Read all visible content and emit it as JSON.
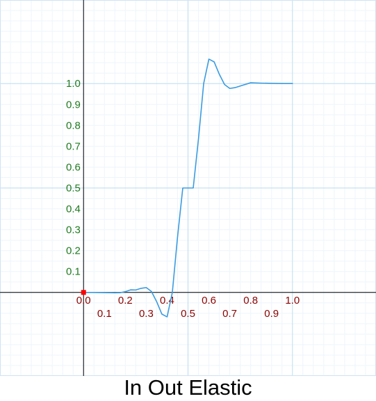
{
  "chart_data": {
    "type": "line",
    "title": "In Out Elastic",
    "xlabel": "",
    "ylabel": "",
    "xlim": [
      -0.4,
      1.4
    ],
    "ylim": [
      -0.4,
      1.4
    ],
    "grid": true,
    "x_ticks": [
      "0.0",
      "0.1",
      "0.2",
      "0.3",
      "0.4",
      "0.5",
      "0.6",
      "0.7",
      "0.8",
      "0.9",
      "1.0"
    ],
    "y_ticks": [
      "0.1",
      "0.2",
      "0.3",
      "0.4",
      "0.5",
      "0.6",
      "0.7",
      "0.8",
      "0.9",
      "1.0"
    ],
    "origin_marker": [
      0,
      0
    ],
    "colors": {
      "curve": "#3a9be0",
      "x_tick": "#8b0000",
      "y_tick": "#1e7a1e",
      "axis": "#000000",
      "grid_major": "#bcdcf2",
      "grid_minor": "#eef5fb",
      "marker": "#ff0000"
    },
    "series": [
      {
        "x": [
          0.0,
          0.05,
          0.1,
          0.15,
          0.175,
          0.2,
          0.225,
          0.25,
          0.275,
          0.3,
          0.325,
          0.35,
          0.375,
          0.4,
          0.425,
          0.45,
          0.475,
          0.5,
          0.525,
          0.55,
          0.575,
          0.6,
          0.625,
          0.65,
          0.675,
          0.7,
          0.725,
          0.75,
          0.8,
          0.85,
          0.9,
          0.95,
          1.0
        ],
        "y": [
          0.0,
          0.0,
          -0.001,
          -0.002,
          -0.0014,
          0.0039,
          0.0123,
          0.0117,
          0.0195,
          0.0234,
          0.0047,
          -0.0443,
          -0.1039,
          -0.117,
          0.0,
          0.2663,
          0.5,
          0.5,
          0.5,
          0.7337,
          1.0,
          1.117,
          1.1039,
          1.0443,
          0.9953,
          0.9766,
          0.9805,
          0.9883,
          1.0039,
          1.002,
          1.001,
          1.0,
          1.0
        ]
      }
    ]
  }
}
